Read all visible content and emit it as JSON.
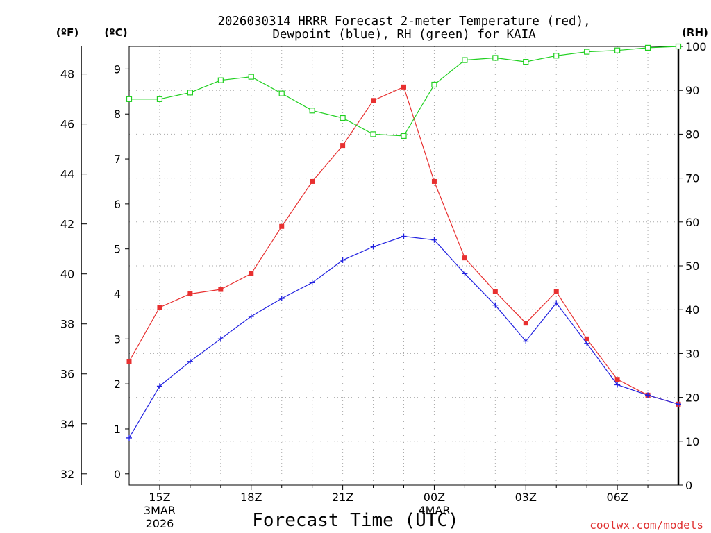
{
  "chart_data": {
    "type": "line",
    "title_line1": "2026030314 HRRR Forecast 2-meter Temperature (red),",
    "title_line2": "Dewpoint (blue), RH (green) for KAIA",
    "xlabel": "Forecast Time (UTC)",
    "credit": "coolwx.com/models",
    "unit_f": "(ºF)",
    "unit_c": "(ºC)",
    "unit_rh": "(RH)",
    "x_hours": [
      14,
      15,
      16,
      17,
      18,
      19,
      20,
      21,
      22,
      23,
      24,
      25,
      26,
      27,
      28,
      29,
      30,
      31,
      32
    ],
    "xlim": [
      14,
      32
    ],
    "x_ticks": [
      {
        "hour": 15,
        "label": "15Z",
        "sub1": "3MAR",
        "sub2": "2026"
      },
      {
        "hour": 18,
        "label": "18Z",
        "sub1": "",
        "sub2": ""
      },
      {
        "hour": 21,
        "label": "21Z",
        "sub1": "",
        "sub2": ""
      },
      {
        "hour": 24,
        "label": "00Z",
        "sub1": "4MAR",
        "sub2": ""
      },
      {
        "hour": 27,
        "label": "03Z",
        "sub1": "",
        "sub2": ""
      },
      {
        "hour": 30,
        "label": "06Z",
        "sub1": "",
        "sub2": ""
      }
    ],
    "c_axis": {
      "range": [
        -0.25,
        9.5
      ],
      "ticks": [
        "0",
        "1",
        "2",
        "3",
        "4",
        "5",
        "6",
        "7",
        "8",
        "9"
      ]
    },
    "f_axis": {
      "ticks": [
        "32",
        "34",
        "36",
        "38",
        "40",
        "42",
        "44",
        "46",
        "48"
      ]
    },
    "rh_axis": {
      "range": [
        0,
        100
      ],
      "ticks": [
        "0",
        "10",
        "20",
        "30",
        "40",
        "50",
        "60",
        "70",
        "80",
        "90",
        "100"
      ]
    },
    "series": [
      {
        "name": "Temperature",
        "axis": "c",
        "color": "#e83030",
        "marker": "filled-square",
        "values": [
          2.5,
          3.7,
          4.0,
          4.1,
          4.45,
          5.5,
          6.5,
          7.3,
          8.3,
          8.6,
          6.5,
          4.8,
          4.05,
          3.35,
          4.05,
          3.0,
          2.1,
          1.75,
          1.55
        ]
      },
      {
        "name": "Dewpoint",
        "axis": "c",
        "color": "#2020e0",
        "marker": "plus",
        "values": [
          0.8,
          1.95,
          2.5,
          3.0,
          3.5,
          3.9,
          4.25,
          4.75,
          5.05,
          5.28,
          5.2,
          4.45,
          3.75,
          2.95,
          3.8,
          2.9,
          1.98,
          1.75,
          1.55
        ]
      },
      {
        "name": "RH",
        "axis": "rh",
        "color": "#20d020",
        "marker": "open-square",
        "values": [
          88,
          88,
          89.5,
          92.3,
          93.1,
          89.3,
          85.4,
          83.7,
          80,
          79.6,
          91.3,
          96.9,
          97.4,
          96.5,
          97.9,
          98.8,
          99.1,
          99.7,
          100
        ]
      }
    ]
  }
}
